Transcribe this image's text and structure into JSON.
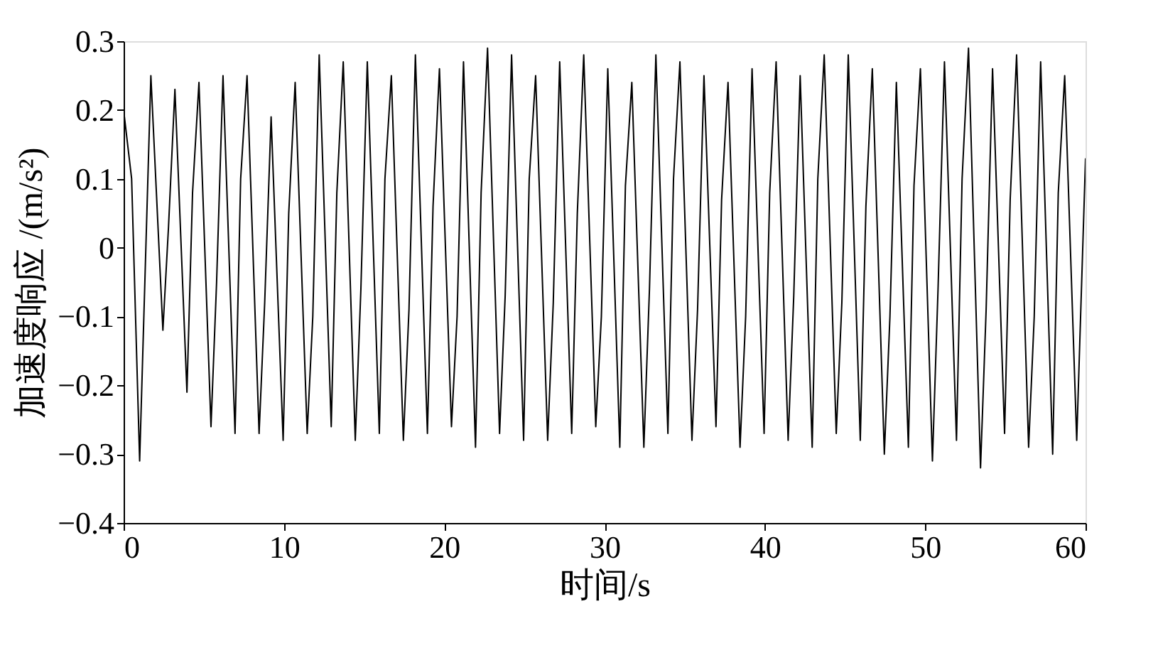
{
  "chart_data": {
    "type": "line",
    "xlabel": "时间/s",
    "ylabel": "加速度响应 /(m/s²)",
    "x": [
      0,
      0.5,
      1.0,
      1.7,
      2.45,
      2.8,
      3.2,
      3.95,
      4.3,
      4.7,
      5.45,
      5.8,
      6.2,
      6.95,
      7.3,
      7.7,
      8.45,
      8.8,
      9.2,
      9.95,
      10.3,
      10.7,
      11.45,
      11.8,
      12.2,
      12.95,
      13.3,
      13.7,
      14.45,
      14.8,
      15.2,
      15.95,
      16.3,
      16.7,
      17.45,
      17.8,
      18.2,
      18.95,
      19.3,
      19.7,
      20.45,
      20.8,
      21.2,
      21.95,
      22.3,
      22.7,
      23.45,
      23.8,
      24.2,
      24.95,
      25.3,
      25.7,
      26.45,
      26.8,
      27.2,
      27.95,
      28.3,
      28.7,
      29.45,
      29.8,
      30.2,
      30.95,
      31.3,
      31.7,
      32.45,
      32.8,
      33.2,
      33.95,
      34.3,
      34.7,
      35.45,
      35.8,
      36.2,
      36.95,
      37.3,
      37.7,
      38.45,
      38.8,
      39.2,
      39.95,
      40.3,
      40.7,
      41.45,
      41.8,
      42.2,
      42.95,
      43.3,
      43.7,
      44.45,
      44.8,
      45.2,
      45.95,
      46.3,
      46.7,
      47.45,
      47.8,
      48.2,
      48.95,
      49.3,
      49.7,
      50.45,
      50.8,
      51.2,
      51.95,
      52.3,
      52.7,
      53.45,
      53.8,
      54.2,
      54.95,
      55.3,
      55.7,
      56.45,
      56.8,
      57.2,
      57.95,
      58.3,
      58.7,
      59.45,
      60
    ],
    "series": [
      {
        "color": "#000000",
        "values": [
          0.2,
          0.1,
          -0.31,
          0.25,
          -0.12,
          0.03,
          0.23,
          -0.21,
          0.08,
          0.24,
          -0.26,
          -0.05,
          0.25,
          -0.27,
          0.1,
          0.25,
          -0.27,
          -0.08,
          0.19,
          -0.28,
          0.05,
          0.24,
          -0.27,
          -0.1,
          0.28,
          -0.26,
          0.08,
          0.27,
          -0.28,
          -0.06,
          0.27,
          -0.27,
          0.1,
          0.25,
          -0.28,
          -0.09,
          0.28,
          -0.27,
          0.06,
          0.26,
          -0.26,
          -0.1,
          0.27,
          -0.29,
          0.08,
          0.29,
          -0.27,
          -0.07,
          0.28,
          -0.28,
          0.1,
          0.25,
          -0.28,
          -0.08,
          0.27,
          -0.27,
          0.05,
          0.28,
          -0.26,
          -0.1,
          0.26,
          -0.29,
          0.09,
          0.24,
          -0.29,
          -0.06,
          0.28,
          -0.27,
          0.1,
          0.27,
          -0.28,
          -0.09,
          0.25,
          -0.26,
          0.07,
          0.24,
          -0.29,
          -0.1,
          0.26,
          -0.27,
          0.08,
          0.27,
          -0.28,
          -0.07,
          0.25,
          -0.29,
          0.1,
          0.28,
          -0.27,
          -0.08,
          0.28,
          -0.28,
          0.06,
          0.26,
          -0.3,
          -0.1,
          0.24,
          -0.29,
          0.09,
          0.26,
          -0.31,
          -0.06,
          0.27,
          -0.28,
          0.1,
          0.29,
          -0.32,
          -0.09,
          0.26,
          -0.27,
          0.07,
          0.28,
          -0.29,
          -0.1,
          0.27,
          -0.3,
          0.08,
          0.25,
          -0.28,
          0.13
        ]
      }
    ],
    "xlim": [
      0,
      60
    ],
    "xticks": [
      0,
      10,
      20,
      30,
      40,
      50,
      60
    ],
    "ylim": [
      -0.4,
      0.3
    ],
    "yticks": [
      -0.4,
      -0.3,
      -0.2,
      -0.1,
      0,
      0.1,
      0.2,
      0.3
    ],
    "grid": false,
    "line_style": "solid",
    "marker": "none"
  }
}
